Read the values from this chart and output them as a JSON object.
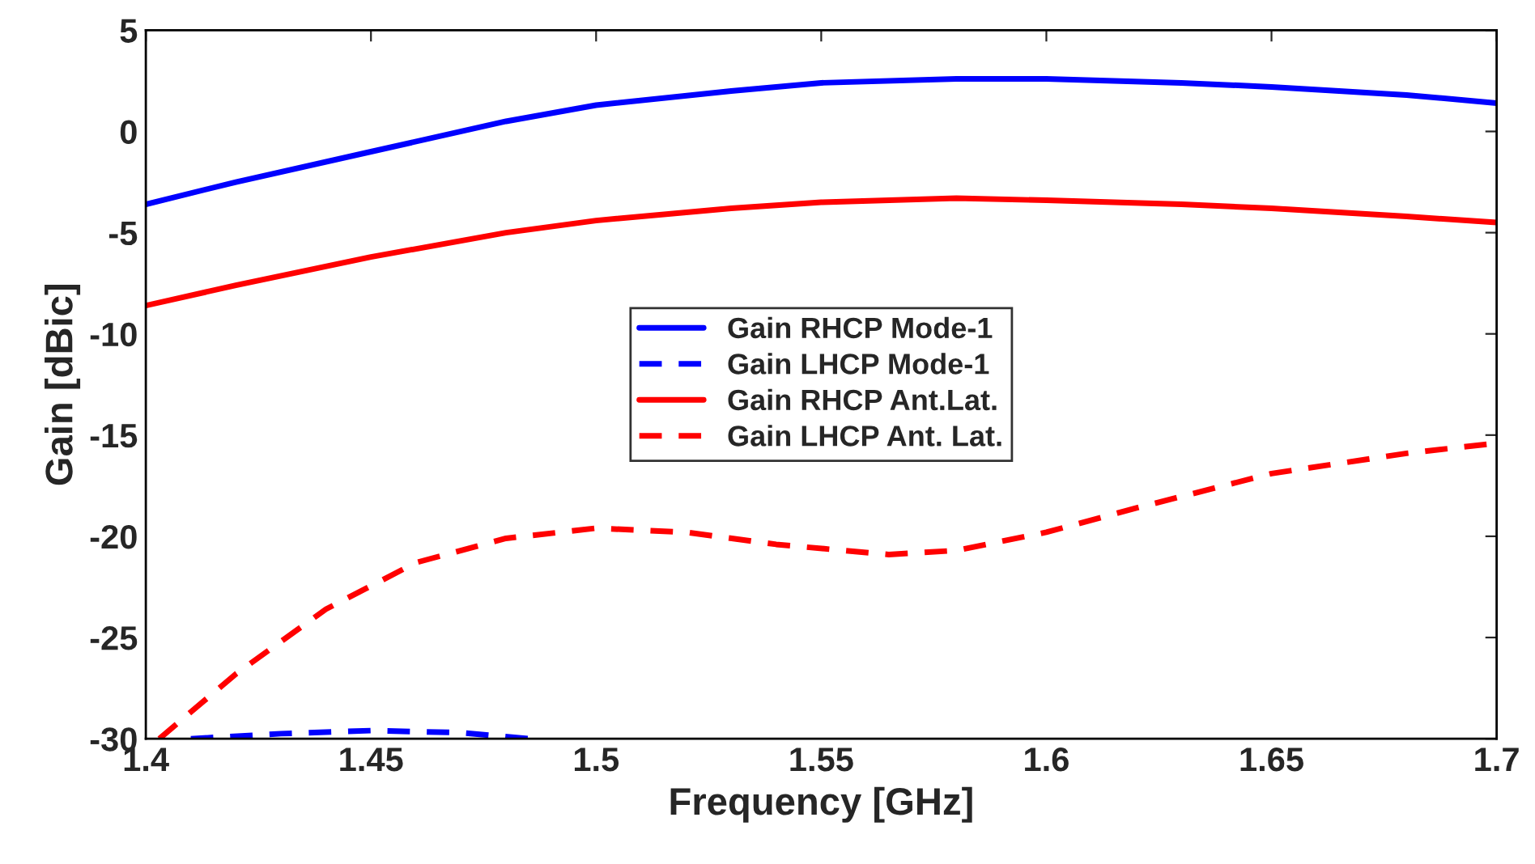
{
  "chart_data": {
    "type": "line",
    "xlabel": "Frequency [GHz]",
    "ylabel": "Gain [dBic]",
    "xlim": [
      1.4,
      1.7
    ],
    "xticks": [
      1.4,
      1.45,
      1.5,
      1.55,
      1.6,
      1.65,
      1.7
    ],
    "ylim": [
      -30,
      5
    ],
    "yticks": [
      -30,
      -25,
      -20,
      -15,
      -10,
      -5,
      0,
      5
    ],
    "grid": false,
    "legend": "center",
    "marker": "none",
    "series": [
      {
        "name": "Gain RHCP Mode-1",
        "color": "#0000ff",
        "line_style": "solid",
        "x": [
          1.4,
          1.42,
          1.45,
          1.48,
          1.5,
          1.53,
          1.55,
          1.58,
          1.6,
          1.63,
          1.65,
          1.68,
          1.7
        ],
        "values": [
          -3.6,
          -2.5,
          -1.0,
          0.5,
          1.3,
          2.0,
          2.4,
          2.6,
          2.6,
          2.4,
          2.2,
          1.8,
          1.4
        ]
      },
      {
        "name": "Gain LHCP Mode-1",
        "color": "#0000ff",
        "line_style": "dashed",
        "x": [
          1.41,
          1.43,
          1.45,
          1.47,
          1.485
        ],
        "values": [
          -30,
          -29.75,
          -29.6,
          -29.7,
          -30
        ]
      },
      {
        "name": "Gain RHCP Ant.Lat.",
        "color": "#ff0000",
        "line_style": "solid",
        "x": [
          1.4,
          1.42,
          1.45,
          1.48,
          1.5,
          1.53,
          1.55,
          1.58,
          1.6,
          1.63,
          1.65,
          1.68,
          1.7
        ],
        "values": [
          -8.6,
          -7.6,
          -6.2,
          -5.0,
          -4.4,
          -3.8,
          -3.5,
          -3.3,
          -3.4,
          -3.6,
          -3.8,
          -4.2,
          -4.5
        ]
      },
      {
        "name": "Gain LHCP Ant. Lat.",
        "color": "#ff0000",
        "line_style": "dashed",
        "x": [
          1.403,
          1.42,
          1.44,
          1.46,
          1.48,
          1.5,
          1.52,
          1.54,
          1.565,
          1.58,
          1.6,
          1.62,
          1.65,
          1.68,
          1.7
        ],
        "values": [
          -30,
          -26.8,
          -23.6,
          -21.3,
          -20.1,
          -19.6,
          -19.8,
          -20.4,
          -20.9,
          -20.7,
          -19.8,
          -18.6,
          -16.9,
          -15.9,
          -15.4
        ]
      }
    ]
  }
}
